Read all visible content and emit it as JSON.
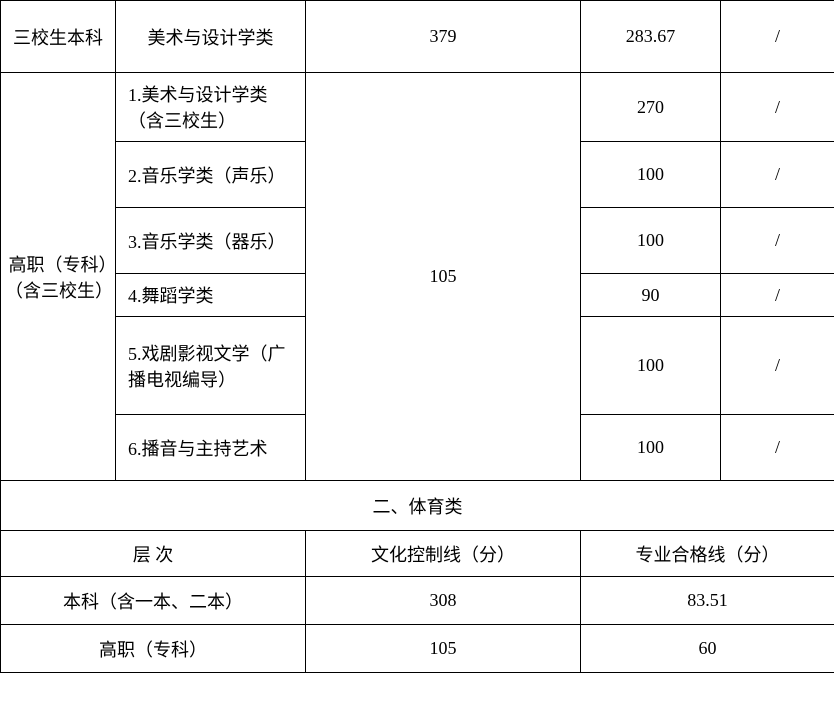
{
  "table": {
    "rows": [
      {
        "c1": "三校生本科",
        "c2": "美术与设计学类",
        "c3": "379",
        "c4": "283.67",
        "c5": "/"
      }
    ],
    "group": {
      "c1": "高职（专科）（含三校生）",
      "c3": "105",
      "subs": [
        {
          "c2": "1.美术与设计学类（含三校生）",
          "c4": "270",
          "c5": "/"
        },
        {
          "c2": "2.音乐学类（声乐）",
          "c4": "100",
          "c5": "/"
        },
        {
          "c2": "3.音乐学类（器乐）",
          "c4": "100",
          "c5": "/"
        },
        {
          "c2": "4.舞蹈学类",
          "c4": "90",
          "c5": "/"
        },
        {
          "c2": "5.戏剧影视文学（广播电视编导）",
          "c4": "100",
          "c5": "/"
        },
        {
          "c2": "6.播音与主持艺术",
          "c4": "100",
          "c5": "/"
        }
      ]
    },
    "section2": {
      "title": "二、体育类",
      "headers": {
        "h1": "层 次",
        "h2": "文化控制线（分）",
        "h3": "专业合格线（分）"
      },
      "rows": [
        {
          "c1": "本科（含一本、二本）",
          "c2": "308",
          "c3": "83.51"
        },
        {
          "c1": "高职（专科）",
          "c2": "105",
          "c3": "60"
        }
      ]
    }
  },
  "style": {
    "border_color": "#000000",
    "background": "#ffffff",
    "text_color": "#000000",
    "font_size": 18
  }
}
